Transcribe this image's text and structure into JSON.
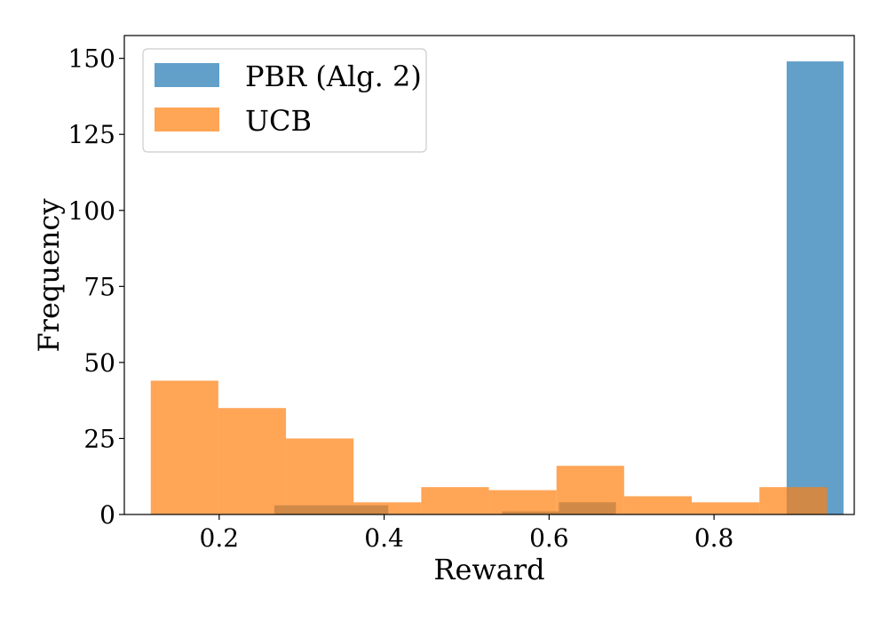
{
  "chart_data": {
    "type": "bar",
    "title": "",
    "xlabel": "Reward",
    "ylabel": "Frequency",
    "xlim": [
      0.085,
      0.97
    ],
    "ylim": [
      0,
      157.5
    ],
    "xticks": [
      0.2,
      0.4,
      0.6,
      0.8
    ],
    "xtick_labels": [
      "0.2",
      "0.4",
      "0.6",
      "0.8"
    ],
    "yticks": [
      0,
      25,
      50,
      75,
      100,
      125,
      150
    ],
    "ytick_labels": [
      "0",
      "25",
      "50",
      "75",
      "100",
      "125",
      "150"
    ],
    "grid": false,
    "legend_placement": "top-left",
    "series": [
      {
        "name": "PBR (Alg. 2)",
        "color": "#1f77b4",
        "opacity": 0.7,
        "bins": [
          {
            "x0": 0.267,
            "x1": 0.336,
            "value": 3
          },
          {
            "x0": 0.336,
            "x1": 0.405,
            "value": 3
          },
          {
            "x0": 0.543,
            "x1": 0.612,
            "value": 1
          },
          {
            "x0": 0.612,
            "x1": 0.681,
            "value": 4
          },
          {
            "x0": 0.888,
            "x1": 0.957,
            "value": 149
          }
        ]
      },
      {
        "name": "UCB",
        "color": "#ff7f0e",
        "opacity": 0.7,
        "bins": [
          {
            "x0": 0.117,
            "x1": 0.199,
            "value": 44
          },
          {
            "x0": 0.199,
            "x1": 0.281,
            "value": 35
          },
          {
            "x0": 0.281,
            "x1": 0.363,
            "value": 25
          },
          {
            "x0": 0.363,
            "x1": 0.445,
            "value": 4
          },
          {
            "x0": 0.445,
            "x1": 0.527,
            "value": 9
          },
          {
            "x0": 0.527,
            "x1": 0.609,
            "value": 8
          },
          {
            "x0": 0.609,
            "x1": 0.691,
            "value": 16
          },
          {
            "x0": 0.691,
            "x1": 0.773,
            "value": 6
          },
          {
            "x0": 0.773,
            "x1": 0.855,
            "value": 4
          },
          {
            "x0": 0.855,
            "x1": 0.937,
            "value": 9
          }
        ]
      }
    ]
  }
}
